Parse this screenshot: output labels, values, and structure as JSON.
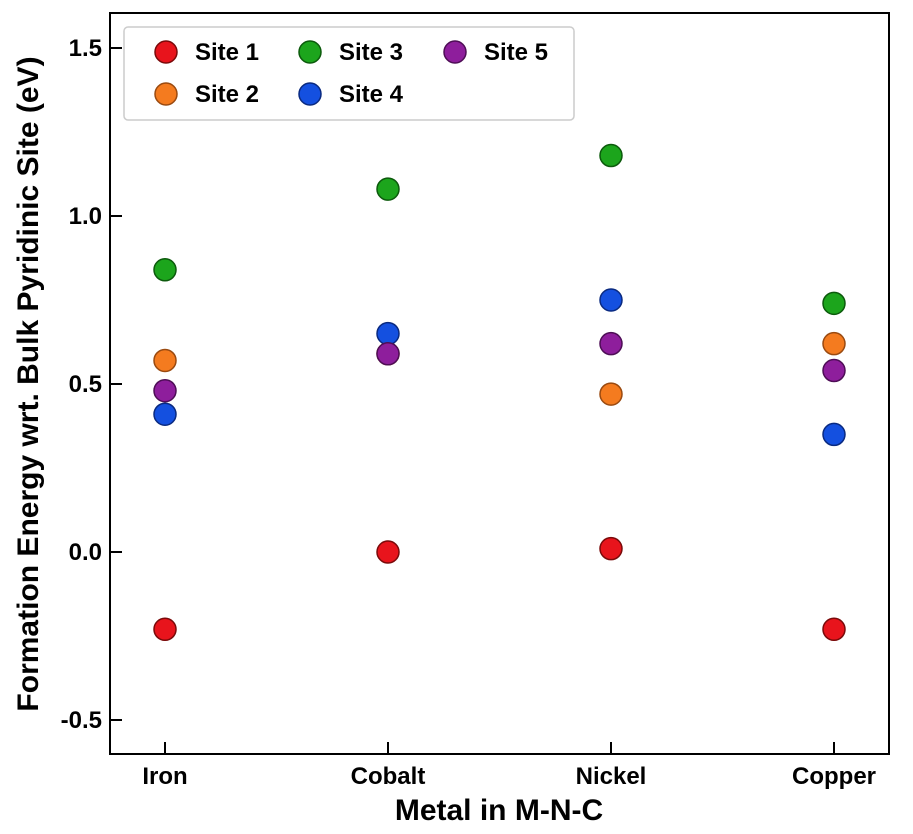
{
  "chart_data": {
    "type": "scatter",
    "title": "",
    "xlabel": "Metal in M-N-C",
    "ylabel": "Formation Energy wrt. Bulk Pyridinic Site (eV)",
    "categories": [
      "Iron",
      "Cobalt",
      "Nickel",
      "Copper"
    ],
    "ylim": [
      -0.6,
      1.6
    ],
    "yticks": [
      -0.5,
      0.0,
      0.5,
      1.0,
      1.5
    ],
    "ytick_labels": [
      "-0.5",
      "0.0",
      "0.5",
      "1.0",
      "1.5"
    ],
    "grid": false,
    "legend_position": "top-left",
    "series": [
      {
        "name": "Site 1",
        "color": "#e8141c",
        "edge": "#7a0a0a",
        "values": [
          -0.23,
          0.0,
          0.01,
          -0.23
        ]
      },
      {
        "name": "Site 2",
        "color": "#f47b1f",
        "edge": "#9a4a10",
        "values": [
          0.57,
          0.59,
          0.47,
          0.62
        ]
      },
      {
        "name": "Site 3",
        "color": "#1ca51c",
        "edge": "#0c5a0c",
        "values": [
          0.84,
          1.08,
          1.18,
          0.74
        ]
      },
      {
        "name": "Site 4",
        "color": "#1450e0",
        "edge": "#0a2a80",
        "values": [
          0.41,
          0.65,
          0.75,
          0.35
        ]
      },
      {
        "name": "Site 5",
        "color": "#8e1e9c",
        "edge": "#4e0e56",
        "values": [
          0.48,
          0.59,
          0.62,
          0.54
        ]
      }
    ]
  }
}
